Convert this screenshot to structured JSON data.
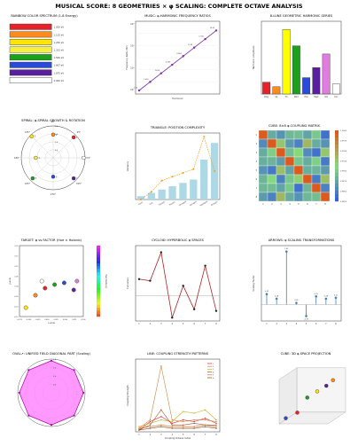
{
  "figure_title": "MUSICAL SCORE: 8 GEOMETRIES × φ SCALING: COMPLETE OCTAVE ANALYSIS",
  "colors": {
    "rainbow": [
      "#e8202a",
      "#ff8c1a",
      "#ffe500",
      "#f5f03a",
      "#1aa31a",
      "#2a4bd8",
      "#5a1ea0",
      "#ffffff"
    ],
    "accent_line": "#7a2ca6",
    "bar_blue": "#add8e6",
    "orange": "#f0a020",
    "red_line": "#b22222",
    "steel": "#4682b4",
    "magenta_fill": "#ff77ff"
  },
  "chart_data": [
    {
      "id": "rainbow",
      "type": "table",
      "title": "RAINBOW COLOR SPECTRUM (1-8 Energy)",
      "rows": [
        "1.000 eV",
        "1.125 eV",
        "1.250 eV",
        "1.333 eV",
        "1.500 eV",
        "1.667 eV",
        "1.875 eV",
        "2.000 eV"
      ]
    },
    {
      "id": "harmonic",
      "type": "line",
      "title": "MUSIC: φ-HARMONIC FREQUENCY RATIOS",
      "xlabel": "Harmonic",
      "ylabel": "Frequency Ratio (Hz)",
      "x": [
        1,
        2,
        3,
        4,
        5,
        6,
        7,
        8
      ],
      "y": [
        1.0,
        1.618,
        2.618,
        4.236,
        6.854,
        11.09,
        17.94,
        29.03
      ],
      "log_y": true,
      "yticks": [
        "10¹",
        "10²",
        "10³",
        "10⁴"
      ],
      "labels": [
        "1.00",
        "1.618",
        "2.618",
        "4.236",
        "6.854",
        "11.09",
        "17.94",
        "29.03"
      ]
    },
    {
      "id": "geometric",
      "type": "bar",
      "title": "8-LUNE GEOMETRIC HARMONIC SERIES",
      "ylabel": "Harmonic Amplitude",
      "categories": [
        "Ring",
        "Sq",
        "Tri",
        "Pent",
        "Hex",
        "Hept",
        "Oct",
        "Circ"
      ],
      "values": [
        1.3,
        0.8,
        7.1,
        5.3,
        1.8,
        2.9,
        4.4,
        1.1
      ],
      "ylim": [
        0,
        8
      ],
      "bar_colors": [
        "#e8202a",
        "#ff8c1a",
        "#ffff00",
        "#1aa31a",
        "#2a4bd8",
        "#5a1ea0",
        "#e07be0",
        "#ffffff"
      ]
    },
    {
      "id": "spiral",
      "type": "scatter",
      "title": "SPIRAL: φ-SPIRAL GROWTH & ROTATION",
      "angle_labels": [
        "0°",
        "45°",
        "90°",
        "135°",
        "180°",
        "225°",
        "270°",
        "315°"
      ],
      "r_labels": [
        "0.5",
        "1.0",
        "1.5",
        "2.0"
      ],
      "points": [
        {
          "label": "1",
          "theta": 45,
          "r": 2.0
        },
        {
          "label": "2",
          "theta": 90,
          "r": 1.6
        },
        {
          "label": "3",
          "theta": 135,
          "r": 2.1
        },
        {
          "label": "4",
          "theta": 180,
          "r": 1.2
        },
        {
          "label": "5",
          "theta": 225,
          "r": 2.0
        },
        {
          "label": "6",
          "theta": 270,
          "r": 1.3
        },
        {
          "label": "7",
          "theta": 315,
          "r": 2.0
        },
        {
          "label": "8",
          "theta": 0,
          "r": 2.1
        }
      ]
    },
    {
      "id": "triangle",
      "type": "bar",
      "title": "TRIANGLE: POSITION COMPLEXITY",
      "ylabel": "Variance",
      "categories": [
        "Point",
        "Line",
        "Triangle",
        "Square",
        "Pentagon",
        "Hexagon",
        "Heptagon",
        "Octagon"
      ],
      "values": [
        1,
        2,
        3,
        4,
        5,
        6,
        12,
        17
      ],
      "ylim": [
        0,
        20
      ],
      "line_values": [
        0.0,
        0.4,
        1.0,
        1.2,
        1.4,
        1.6,
        3.3,
        1.5
      ]
    },
    {
      "id": "heatmap",
      "type": "heatmap",
      "title": "CUBE: 8×8 φ-COUPLING MATRIX",
      "size": 8,
      "colorbar_ticks": [
        "1.0000",
        "0.9975",
        "0.9950",
        "0.9925",
        "0.9900",
        "0.9875",
        "0.9850",
        "0.9825"
      ]
    },
    {
      "id": "target",
      "type": "scatter",
      "title": "TARGET: φ vs FACTOR (Hue × Holonic)",
      "xlabel": "x-axis",
      "ylabel": "y-axis",
      "xticks": [
        "-0.075",
        "-0.050",
        "-0.025",
        "0.000",
        "0.025",
        "0.050",
        "0.075",
        "0.100"
      ],
      "yticks": [
        "0.20",
        "0.15",
        "0.10",
        "0.05",
        "0.00",
        "-0.05",
        "-0.10",
        "-0.15"
      ],
      "colorbar_label": "Hue (Radians)",
      "points": [
        {
          "x": -0.07,
          "y": -0.12,
          "c": "#ffe500"
        },
        {
          "x": -0.04,
          "y": -0.05,
          "c": "#ff8c1a"
        },
        {
          "x": -0.01,
          "y": -0.01,
          "c": "#e8202a"
        },
        {
          "x": 0.02,
          "y": 0.01,
          "c": "#1aa31a"
        },
        {
          "x": 0.05,
          "y": 0.02,
          "c": "#2a4bd8"
        },
        {
          "x": 0.08,
          "y": -0.02,
          "c": "#5a1ea0"
        },
        {
          "x": 0.09,
          "y": 0.03,
          "c": "#e07be0"
        },
        {
          "x": -0.02,
          "y": 0.03,
          "c": "#ffffff"
        }
      ]
    },
    {
      "id": "cycloid",
      "type": "line",
      "title": "CYCLOID: HYPERBOLIC φ SPACES",
      "ylabel": "Curvature",
      "x": [
        1,
        2,
        3,
        4,
        5,
        6,
        7,
        8
      ],
      "y": [
        1.0,
        0.9,
        2.6,
        -1.3,
        0.6,
        -0.8,
        1.8,
        -0.9
      ],
      "ylim": [
        -1.5,
        3.0
      ],
      "ref_line": 0.0
    },
    {
      "id": "arrows",
      "type": "bar",
      "title": "ARROWS: φ SCALING TRANSFORMATIONS",
      "ylabel": "Scaling Factor",
      "categories": [
        "1",
        "2",
        "3",
        "4",
        "5",
        "6",
        "7",
        "8"
      ],
      "values": [
        0.32,
        0.18,
        1.62,
        0.05,
        -0.35,
        0.25,
        0.18,
        0.21
      ],
      "ylim": [
        -0.5,
        1.8
      ],
      "value_labels": [
        "0.32",
        "0.18",
        "1.62",
        "0.05",
        "-0.35",
        "0.25",
        "0.18",
        "0.21"
      ]
    },
    {
      "id": "octagon",
      "type": "area",
      "title": "OVAL↗: UNIFIED FIELD DIAGONAL PART (Scaling)",
      "r_labels": [
        "0.5",
        "1.0",
        "1.5",
        "2.0"
      ],
      "values": [
        2.0,
        2.0,
        2.0,
        2.0,
        2.0,
        2.0,
        2.0,
        2.0
      ]
    },
    {
      "id": "coupling",
      "type": "line",
      "title": "LINE: COUPLING STRENGTH PATTERNS",
      "xlabel": "Coupling Octave Index",
      "ylabel": "Coupling Strength",
      "x": [
        1,
        2,
        3,
        4,
        5,
        6,
        7,
        8
      ],
      "series": [
        {
          "name": "1",
          "values": [
            0.0,
            0.05,
            0.08,
            0.04,
            0.06,
            0.05,
            0.07,
            0.04
          ],
          "color": "#e8202a"
        },
        {
          "name": "2",
          "values": [
            0.01,
            0.06,
            0.38,
            0.06,
            0.05,
            0.06,
            0.06,
            0.05
          ],
          "color": "#cd853f"
        },
        {
          "name": "3",
          "values": [
            0.02,
            0.04,
            0.06,
            0.05,
            0.11,
            0.1,
            0.12,
            0.06
          ],
          "color": "#c4b020"
        },
        {
          "name": "4",
          "values": [
            0.0,
            0.03,
            0.12,
            0.03,
            0.03,
            0.04,
            0.03,
            0.03
          ],
          "color": "#a0522d"
        },
        {
          "name": "5",
          "values": [
            0.01,
            0.02,
            0.03,
            0.02,
            0.02,
            0.02,
            0.03,
            0.02
          ],
          "color": "#d2691e"
        },
        {
          "name": "6",
          "values": [
            0.0,
            0.01,
            0.02,
            0.01,
            0.01,
            0.01,
            0.02,
            0.01
          ],
          "color": "#8b4513"
        }
      ],
      "ylim": [
        0,
        0.4
      ]
    },
    {
      "id": "cube3d",
      "type": "scatter",
      "title": "CUBE: 3D φ-SPACE PROJECTION",
      "points": [
        {
          "x": 0.1,
          "y": 0.1,
          "z": 0.1,
          "c": "#2a4bd8"
        },
        {
          "x": 0.3,
          "y": 0.2,
          "z": 0.2,
          "c": "#e8202a"
        },
        {
          "x": 0.45,
          "y": 0.35,
          "z": 0.5,
          "c": "#1aa31a"
        },
        {
          "x": 0.6,
          "y": 0.5,
          "z": 0.6,
          "c": "#ffe500"
        },
        {
          "x": 0.75,
          "y": 0.6,
          "z": 0.7,
          "c": "#5a1ea0"
        },
        {
          "x": 0.85,
          "y": 0.7,
          "z": 0.8,
          "c": "#ff8c1a"
        }
      ]
    }
  ]
}
